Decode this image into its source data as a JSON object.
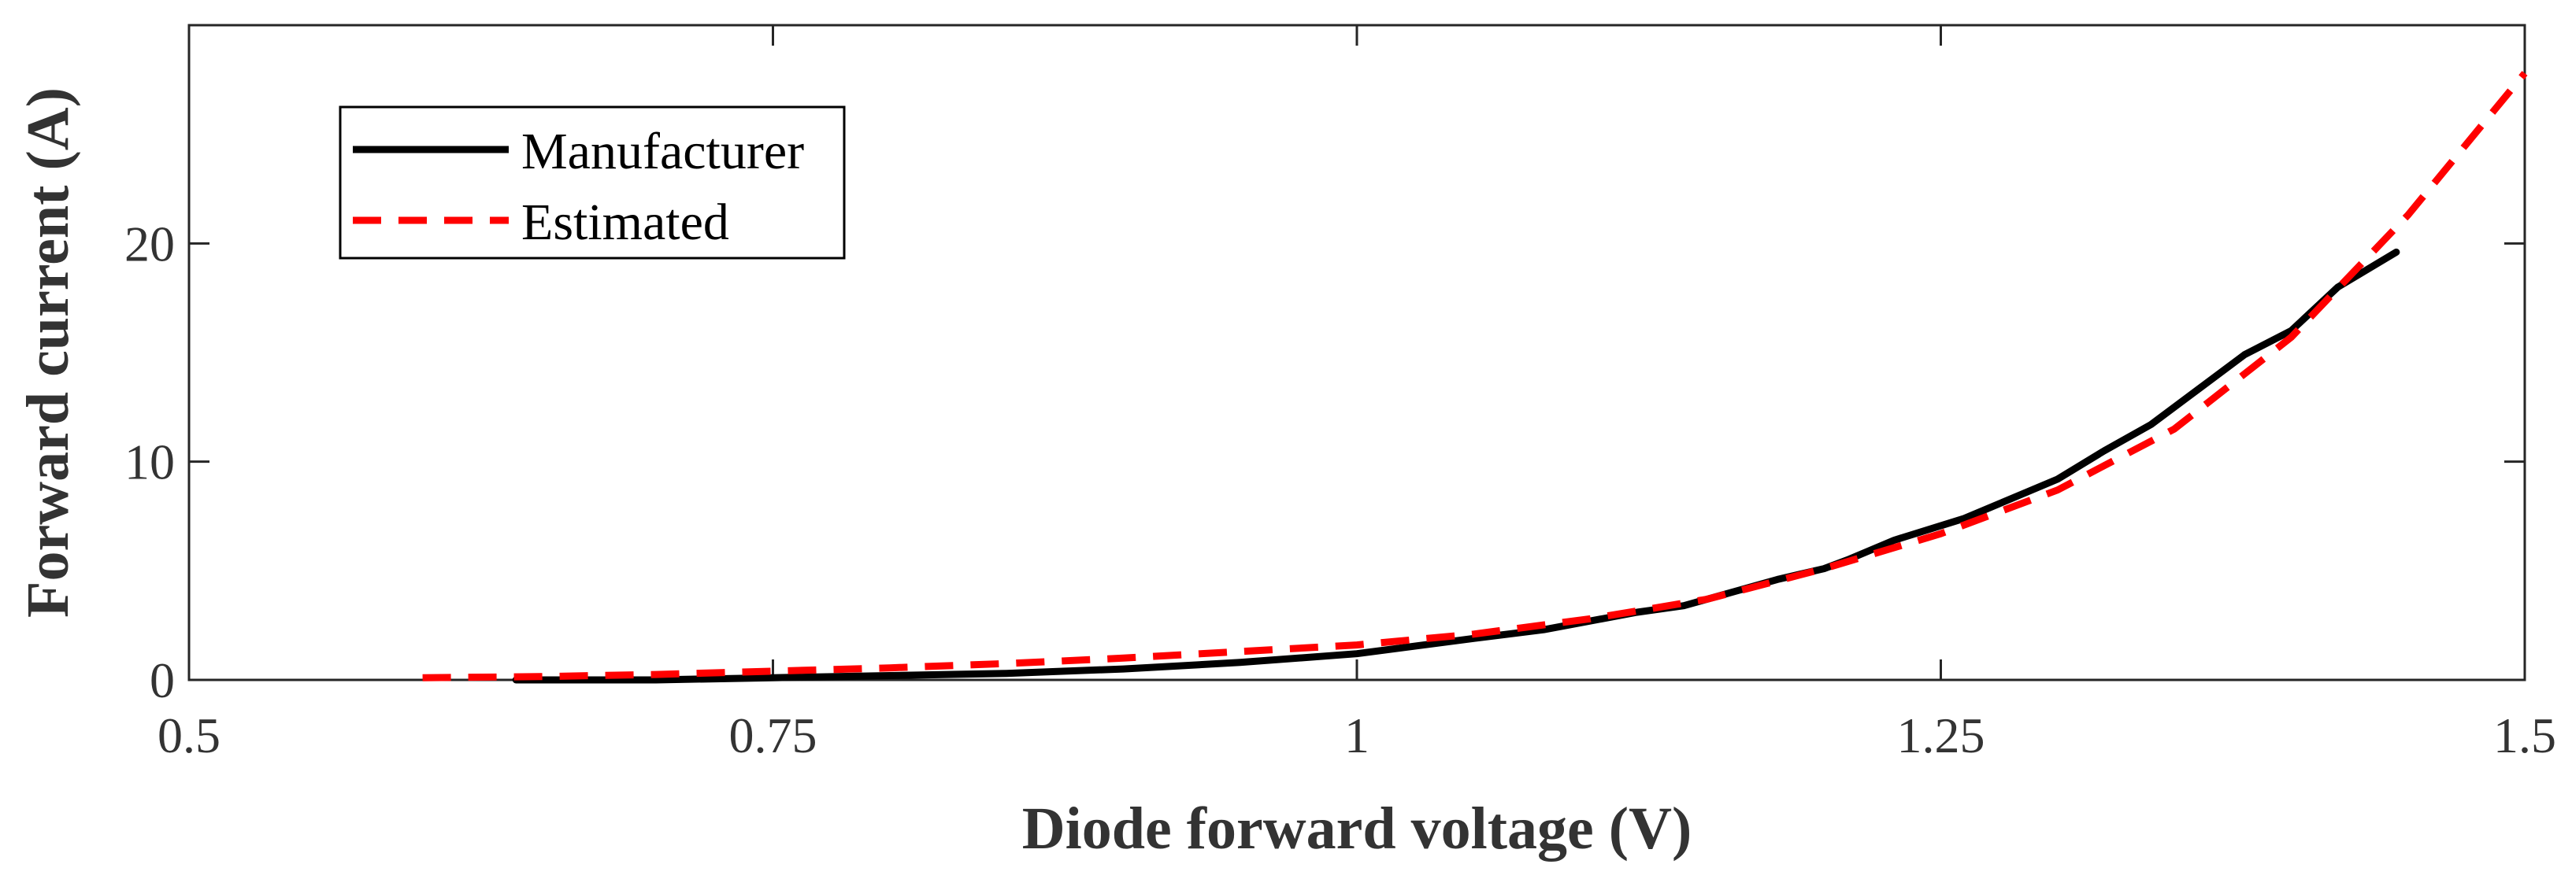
{
  "chart_data": {
    "type": "line",
    "title": "",
    "xlabel": "Diode forward voltage (V)",
    "ylabel": "Forward current (A)",
    "xlim": [
      0.5,
      1.5
    ],
    "ylim": [
      0,
      30
    ],
    "xticks": [
      0.5,
      0.75,
      1,
      1.25,
      1.5
    ],
    "xtick_labels": [
      "0.5",
      "0.75",
      "1",
      "1.25",
      "1.5"
    ],
    "yticks": [
      0,
      10,
      20
    ],
    "ytick_labels": [
      "0",
      "10",
      "20"
    ],
    "grid": false,
    "legend_position": "top-left",
    "series": [
      {
        "name": "Manufacturer",
        "color": "#000000",
        "style": "solid",
        "x": [
          0.64,
          0.7,
          0.75,
          0.8,
          0.85,
          0.9,
          0.95,
          1.0,
          1.05,
          1.08,
          1.1,
          1.12,
          1.14,
          1.16,
          1.18,
          1.2,
          1.21,
          1.23,
          1.26,
          1.3,
          1.32,
          1.34,
          1.36,
          1.38,
          1.4,
          1.42,
          1.445
        ],
        "y": [
          0.0,
          0.0,
          0.1,
          0.2,
          0.3,
          0.5,
          0.8,
          1.2,
          1.9,
          2.3,
          2.7,
          3.1,
          3.4,
          4.0,
          4.6,
          5.1,
          5.5,
          6.4,
          7.4,
          9.2,
          10.5,
          11.7,
          13.3,
          14.9,
          16.0,
          18.0,
          19.6
        ]
      },
      {
        "name": "Estimated",
        "color": "#ff0000",
        "style": "dashed",
        "x": [
          0.6,
          0.65,
          0.7,
          0.75,
          0.8,
          0.85,
          0.9,
          0.95,
          1.0,
          1.05,
          1.1,
          1.15,
          1.2,
          1.25,
          1.3,
          1.35,
          1.4,
          1.45,
          1.5
        ],
        "y": [
          0.1,
          0.15,
          0.25,
          0.4,
          0.55,
          0.75,
          1.0,
          1.3,
          1.6,
          2.1,
          2.8,
          3.7,
          5.1,
          6.7,
          8.7,
          11.5,
          15.7,
          21.3,
          27.8
        ]
      }
    ]
  }
}
